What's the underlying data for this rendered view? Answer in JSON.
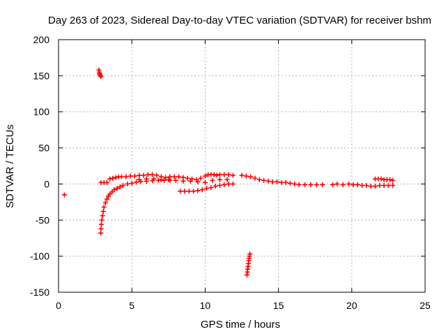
{
  "chart_data": {
    "type": "scatter",
    "title": "Day 263 of 2023, Sidereal Day-to-day VTEC variation (SDTVAR) for receiver bshm",
    "xlabel": "GPS time / hours",
    "ylabel": "SDTVAR / TECUs",
    "xlim": [
      0,
      25
    ],
    "ylim": [
      -150,
      200
    ],
    "xticks": [
      0,
      5,
      10,
      15,
      20,
      25
    ],
    "yticks": [
      -150,
      -100,
      -50,
      0,
      50,
      100,
      150,
      200
    ],
    "grid": true,
    "marker": "+",
    "color": "#ff0000",
    "series": [
      {
        "name": "outlier-early",
        "points": [
          [
            0.4,
            -15
          ]
        ]
      },
      {
        "name": "spike-high",
        "points": [
          [
            2.75,
            158
          ],
          [
            2.78,
            155
          ],
          [
            2.8,
            153
          ],
          [
            2.82,
            152
          ],
          [
            2.85,
            150
          ],
          [
            2.9,
            149
          ]
        ]
      },
      {
        "name": "dip-curve",
        "points": [
          [
            2.88,
            -68
          ],
          [
            2.9,
            -62
          ],
          [
            2.92,
            -56
          ],
          [
            2.95,
            -50
          ],
          [
            3.0,
            -44
          ],
          [
            3.05,
            -38
          ],
          [
            3.1,
            -32
          ],
          [
            3.2,
            -26
          ],
          [
            3.3,
            -21
          ],
          [
            3.4,
            -17
          ],
          [
            3.5,
            -14
          ],
          [
            3.65,
            -11
          ],
          [
            3.8,
            -8
          ],
          [
            4.0,
            -6
          ],
          [
            4.2,
            -4
          ],
          [
            4.4,
            -2
          ],
          [
            4.7,
            0
          ],
          [
            5.0,
            1
          ],
          [
            5.3,
            2.5
          ],
          [
            5.6,
            3.5
          ],
          [
            6.0,
            4
          ],
          [
            6.4,
            4.5
          ],
          [
            6.8,
            5
          ],
          [
            7.2,
            5
          ],
          [
            7.6,
            5
          ]
        ]
      },
      {
        "name": "main-band",
        "points": [
          [
            2.9,
            2
          ],
          [
            3.1,
            2
          ],
          [
            3.3,
            2
          ],
          [
            3.5,
            7
          ],
          [
            3.7,
            8
          ],
          [
            3.9,
            9
          ],
          [
            4.1,
            10
          ],
          [
            4.3,
            10
          ],
          [
            4.6,
            10
          ],
          [
            4.9,
            11
          ],
          [
            5.2,
            11
          ],
          [
            5.5,
            12
          ],
          [
            5.8,
            12
          ],
          [
            6.1,
            13
          ],
          [
            6.4,
            13
          ],
          [
            6.7,
            12
          ],
          [
            7.0,
            10
          ],
          [
            7.3,
            9
          ],
          [
            7.6,
            10
          ],
          [
            7.9,
            10
          ],
          [
            8.2,
            10
          ],
          [
            8.5,
            9
          ],
          [
            8.8,
            8
          ],
          [
            9.1,
            7
          ],
          [
            9.4,
            6
          ],
          [
            9.7,
            8
          ],
          [
            10.0,
            11
          ],
          [
            10.2,
            13
          ],
          [
            10.4,
            13
          ],
          [
            10.6,
            13
          ],
          [
            10.8,
            12
          ],
          [
            11.0,
            13
          ],
          [
            11.3,
            13
          ],
          [
            11.6,
            13
          ],
          [
            11.9,
            12
          ]
        ]
      },
      {
        "name": "main-band-lower",
        "points": [
          [
            5.5,
            6
          ],
          [
            6.0,
            7
          ],
          [
            6.5,
            7
          ],
          [
            7.0,
            6
          ],
          [
            7.5,
            6
          ],
          [
            8.0,
            5
          ],
          [
            8.5,
            4
          ],
          [
            9.0,
            4
          ],
          [
            9.5,
            3
          ],
          [
            10.0,
            2
          ],
          [
            10.5,
            5
          ],
          [
            11.0,
            6
          ],
          [
            11.5,
            6
          ]
        ]
      },
      {
        "name": "dip-8to12",
        "points": [
          [
            8.3,
            -10
          ],
          [
            8.6,
            -10
          ],
          [
            8.9,
            -10
          ],
          [
            9.2,
            -10
          ],
          [
            9.5,
            -9
          ],
          [
            9.8,
            -8
          ],
          [
            10.1,
            -6
          ],
          [
            10.4,
            -5
          ],
          [
            10.7,
            -3
          ],
          [
            11.0,
            -2
          ],
          [
            11.3,
            -1
          ],
          [
            11.6,
            0
          ],
          [
            11.9,
            0
          ]
        ]
      },
      {
        "name": "spike-low",
        "points": [
          [
            12.85,
            -126
          ],
          [
            12.88,
            -122
          ],
          [
            12.9,
            -118
          ],
          [
            12.93,
            -114
          ],
          [
            12.95,
            -110
          ],
          [
            12.98,
            -106
          ],
          [
            13.0,
            -103
          ],
          [
            13.03,
            -100
          ],
          [
            13.05,
            -97
          ]
        ]
      },
      {
        "name": "mid-tail",
        "points": [
          [
            12.5,
            12
          ],
          [
            12.8,
            11
          ],
          [
            13.1,
            10
          ],
          [
            13.4,
            8
          ],
          [
            13.7,
            6
          ],
          [
            14.0,
            5
          ],
          [
            14.3,
            4
          ],
          [
            14.6,
            3
          ],
          [
            14.9,
            3
          ],
          [
            15.2,
            2
          ],
          [
            15.5,
            2
          ],
          [
            15.8,
            1
          ],
          [
            16.1,
            0
          ],
          [
            16.4,
            -1
          ],
          [
            16.8,
            -1
          ],
          [
            17.2,
            -1
          ],
          [
            17.6,
            -1
          ],
          [
            18.0,
            -1
          ],
          [
            18.7,
            -1
          ],
          [
            19.0,
            0
          ],
          [
            19.4,
            -1
          ],
          [
            19.8,
            0
          ],
          [
            20.1,
            -1
          ],
          [
            20.4,
            -1
          ],
          [
            20.7,
            -2
          ],
          [
            21.0,
            -2
          ],
          [
            21.3,
            -3
          ],
          [
            21.6,
            -3
          ],
          [
            21.9,
            -2
          ],
          [
            22.2,
            -2
          ],
          [
            22.5,
            -2
          ],
          [
            22.8,
            -2
          ]
        ]
      },
      {
        "name": "end-upper",
        "points": [
          [
            21.6,
            7
          ],
          [
            21.8,
            7
          ],
          [
            22.0,
            7
          ],
          [
            22.2,
            6
          ],
          [
            22.4,
            6
          ],
          [
            22.6,
            6
          ],
          [
            22.8,
            5
          ]
        ]
      }
    ]
  }
}
